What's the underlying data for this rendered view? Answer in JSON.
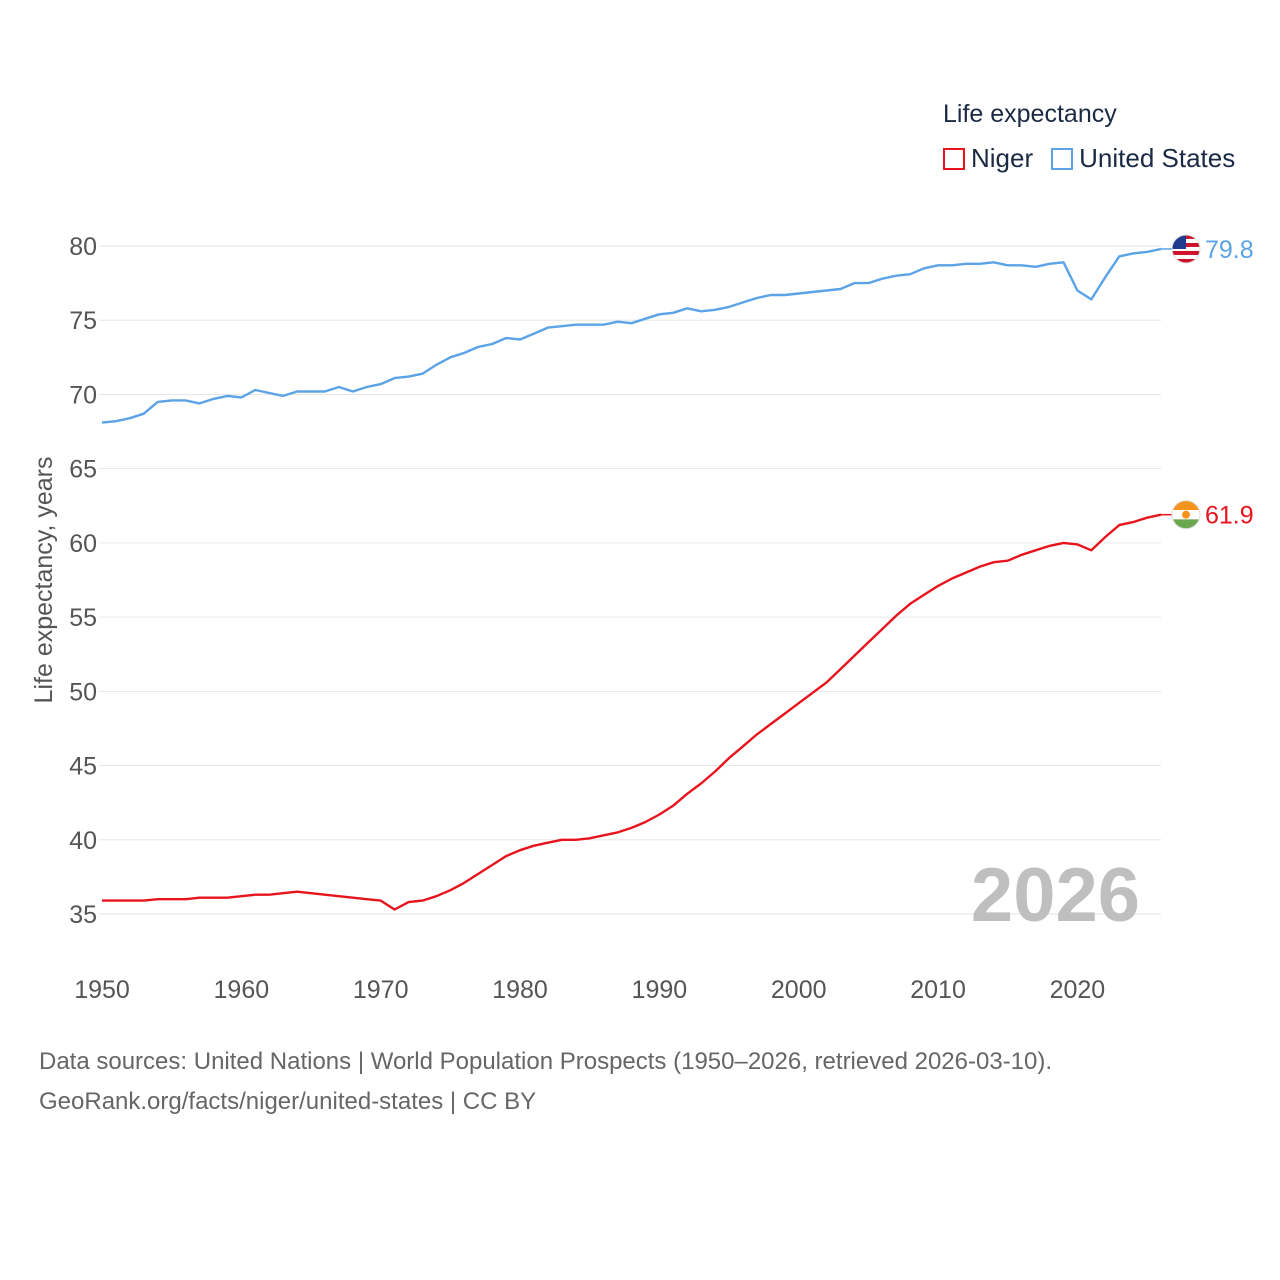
{
  "legend": {
    "title": "Life expectancy",
    "niger": "Niger",
    "usa": "United States"
  },
  "current_year": "2026",
  "source": {
    "line1": "Data sources: United Nations | World Population Prospects (1950–2026, retrieved 2026-03-10).",
    "line2": "GeoRank.org/facts/niger/united-states | CC BY"
  },
  "colors": {
    "niger": "#e8141d",
    "usa": "#5ba3e6",
    "grid": "#e6e6e6",
    "axis_text": "#555555"
  },
  "chart_data": {
    "type": "line",
    "title": "",
    "xlabel": "",
    "ylabel": "Life expectancy, years",
    "xlim": [
      1950,
      2026
    ],
    "ylim": [
      32,
      82
    ],
    "xticks": [
      1950,
      1960,
      1970,
      1980,
      1990,
      2000,
      2010,
      2020
    ],
    "yticks": [
      35,
      40,
      45,
      50,
      55,
      60,
      65,
      70,
      75,
      80
    ],
    "x": [
      1950,
      1951,
      1952,
      1953,
      1954,
      1955,
      1956,
      1957,
      1958,
      1959,
      1960,
      1961,
      1962,
      1963,
      1964,
      1965,
      1966,
      1967,
      1968,
      1969,
      1970,
      1971,
      1972,
      1973,
      1974,
      1975,
      1976,
      1977,
      1978,
      1979,
      1980,
      1981,
      1982,
      1983,
      1984,
      1985,
      1986,
      1987,
      1988,
      1989,
      1990,
      1991,
      1992,
      1993,
      1994,
      1995,
      1996,
      1997,
      1998,
      1999,
      2000,
      2001,
      2002,
      2003,
      2004,
      2005,
      2006,
      2007,
      2008,
      2009,
      2010,
      2011,
      2012,
      2013,
      2014,
      2015,
      2016,
      2017,
      2018,
      2019,
      2020,
      2021,
      2022,
      2023,
      2024,
      2025,
      2026
    ],
    "series": [
      {
        "name": "Niger",
        "end_label": "61.9",
        "values": [
          35.9,
          35.9,
          35.9,
          35.9,
          36.0,
          36.0,
          36.0,
          36.1,
          36.1,
          36.1,
          36.2,
          36.3,
          36.3,
          36.4,
          36.5,
          36.4,
          36.3,
          36.2,
          36.1,
          36.0,
          35.9,
          35.3,
          35.8,
          35.9,
          36.2,
          36.6,
          37.1,
          37.7,
          38.3,
          38.9,
          39.3,
          39.6,
          39.8,
          40.0,
          40.0,
          40.1,
          40.3,
          40.5,
          40.8,
          41.2,
          41.7,
          42.3,
          43.1,
          43.8,
          44.6,
          45.5,
          46.3,
          47.1,
          47.8,
          48.5,
          49.2,
          49.9,
          50.6,
          51.5,
          52.4,
          53.3,
          54.2,
          55.1,
          55.9,
          56.5,
          57.1,
          57.6,
          58.0,
          58.4,
          58.7,
          58.8,
          59.2,
          59.5,
          59.8,
          60.0,
          59.9,
          59.5,
          60.4,
          61.2,
          61.4,
          61.7,
          61.9
        ]
      },
      {
        "name": "United States",
        "end_label": "79.8",
        "values": [
          68.1,
          68.2,
          68.4,
          68.7,
          69.5,
          69.6,
          69.6,
          69.4,
          69.7,
          69.9,
          69.8,
          70.3,
          70.1,
          69.9,
          70.2,
          70.2,
          70.2,
          70.5,
          70.2,
          70.5,
          70.7,
          71.1,
          71.2,
          71.4,
          72.0,
          72.5,
          72.8,
          73.2,
          73.4,
          73.8,
          73.7,
          74.1,
          74.5,
          74.6,
          74.7,
          74.7,
          74.7,
          74.9,
          74.8,
          75.1,
          75.4,
          75.5,
          75.8,
          75.6,
          75.7,
          75.9,
          76.2,
          76.5,
          76.7,
          76.7,
          76.8,
          76.9,
          77.0,
          77.1,
          77.5,
          77.5,
          77.8,
          78.0,
          78.1,
          78.5,
          78.7,
          78.7,
          78.8,
          78.8,
          78.9,
          78.7,
          78.7,
          78.6,
          78.8,
          78.9,
          77.0,
          76.4,
          77.9,
          79.3,
          79.5,
          79.6,
          79.8
        ]
      }
    ]
  }
}
